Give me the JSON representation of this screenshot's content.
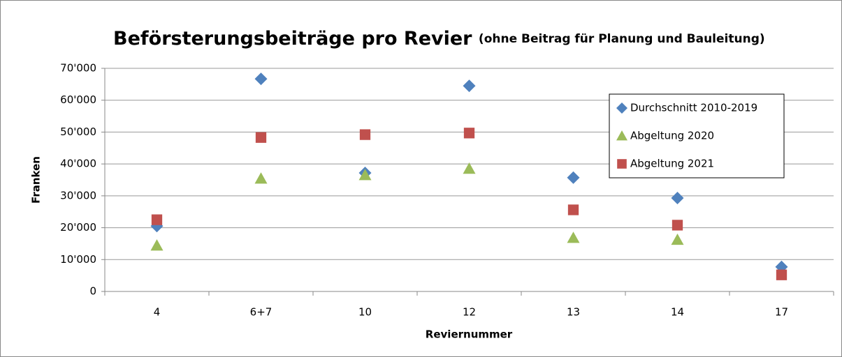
{
  "chart_data": {
    "type": "scatter",
    "title": "Beförsterungsbeiträge pro Revier",
    "subtitle": "(ohne Beitrag für Planung und Bauleitung)",
    "x_label": "Reviernummer",
    "y_label": "Franken",
    "categories": [
      "4",
      "6+7",
      "10",
      "12",
      "13",
      "14",
      "17"
    ],
    "series": [
      {
        "name": "Durchschnitt 2010-2019",
        "color": "#4f81bd",
        "marker": "diamond",
        "values": [
          20500,
          66700,
          37200,
          64500,
          35700,
          29300,
          7700
        ]
      },
      {
        "name": "Abgeltung 2020",
        "color": "#9bbb59",
        "marker": "triangle",
        "values": [
          14400,
          35400,
          36500,
          38500,
          16800,
          16200,
          null
        ]
      },
      {
        "name": "Abgeltung 2021",
        "color": "#c0504d",
        "marker": "square",
        "values": [
          22500,
          48300,
          49200,
          49700,
          25600,
          20800,
          5200
        ]
      }
    ],
    "ylim": [
      0,
      70000
    ],
    "yticks": [
      0,
      {
        "value": 10000,
        "label": "10'000"
      },
      {
        "value": 20000,
        "label": "20'000"
      },
      {
        "value": 30000,
        "label": "30'000"
      },
      {
        "value": 40000,
        "label": "40'000"
      },
      {
        "value": 50000,
        "label": "50'000"
      },
      {
        "value": 60000,
        "label": "60'000"
      },
      {
        "value": 70000,
        "label": "70'000"
      }
    ],
    "grid": true,
    "legend": "upper right"
  }
}
